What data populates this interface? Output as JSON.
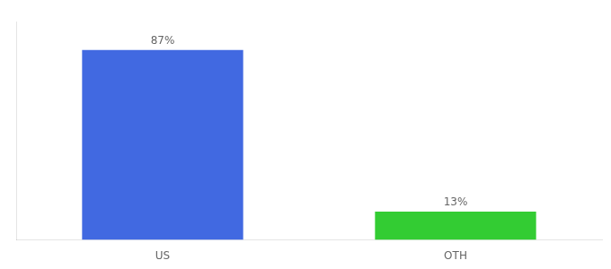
{
  "chart_data": {
    "type": "bar",
    "categories": [
      "US",
      "OTH"
    ],
    "values": [
      87,
      13
    ],
    "value_labels": [
      "87%",
      "13%"
    ],
    "colors": [
      "#4169e1",
      "#33cc33"
    ],
    "ylim": [
      0,
      100
    ],
    "grid": false,
    "data_labels": true,
    "tick_labels": "x"
  }
}
